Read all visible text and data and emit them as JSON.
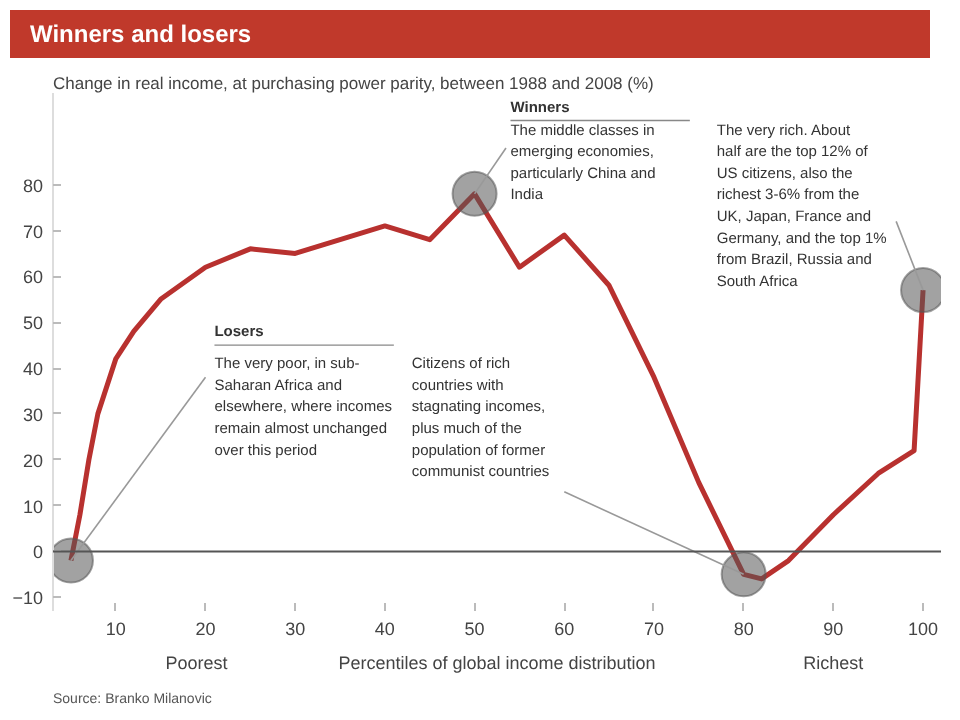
{
  "chart_data": {
    "type": "line",
    "title": "Winners and losers",
    "subtitle": "Change in real income, at purchasing power parity, between 1988 and 2008 (%)",
    "xlabel": "Percentiles of global income distribution",
    "x": [
      5,
      6,
      7,
      8,
      10,
      12,
      15,
      20,
      25,
      30,
      35,
      40,
      45,
      50,
      55,
      60,
      65,
      70,
      75,
      80,
      82,
      85,
      90,
      95,
      99,
      100
    ],
    "series": [
      {
        "color": "#b8312f",
        "values": [
          -2,
          8,
          20,
          30,
          42,
          48,
          55,
          62,
          66,
          65,
          68,
          71,
          68,
          78,
          62,
          69,
          58,
          38,
          15,
          -5,
          -6,
          -2,
          8,
          17,
          22,
          57
        ]
      }
    ],
    "xlim": [
      3,
      102
    ],
    "ylim": [
      -13,
      100
    ],
    "xticks": [
      10,
      20,
      30,
      40,
      50,
      60,
      70,
      80,
      90,
      100
    ],
    "yticks": [
      -10,
      0,
      10,
      20,
      30,
      40,
      50,
      60,
      70,
      80
    ],
    "ref_lines": [
      {
        "axis": "y",
        "value": 0,
        "color": "#555555"
      }
    ],
    "annotations": [
      "Losers",
      {
        "text": "The very poor, in sub-Saharan Africa and elsewhere, where incomes remain almost unchanged over this period",
        "x": 5,
        "y": -2
      },
      {
        "text": "Citizens of rich countries with stagnating incomes, plus much of the population of former communist countries",
        "x": 80,
        "y": -5
      },
      "Winners",
      {
        "text": "The middle classes in emerging economies, particularly China and India",
        "x": 50,
        "y": 78
      },
      {
        "text": "The very rich. About half are the top 12% of US citizens, also the richest 3-6% from the UK, Japan, France and Germany, and the top 1% from Brazil, Russia and South Africa",
        "x": 100,
        "y": 57
      },
      "Poorest",
      "Richest",
      "Source: Branko Milanovic"
    ]
  }
}
